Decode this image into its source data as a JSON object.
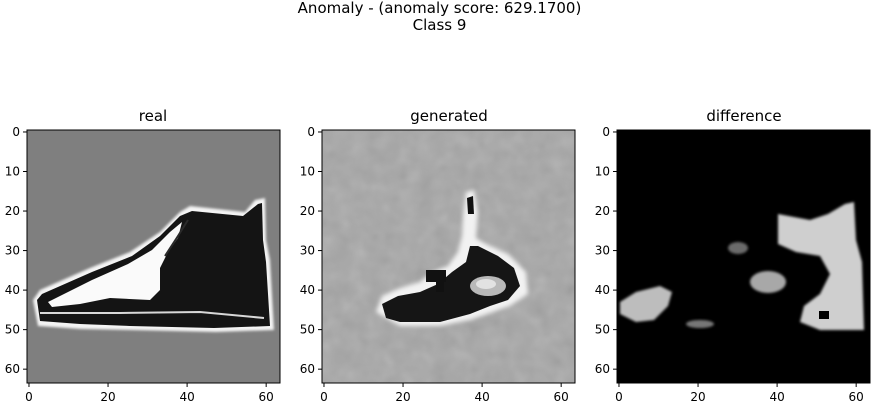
{
  "title": {
    "line1": "Anomaly - (anomaly score: 629.1700)",
    "line2": "Class 9"
  },
  "chart_data": [
    {
      "type": "heatmap",
      "title": "real",
      "colormap": "grayscale",
      "xlim": [
        0,
        63
      ],
      "ylim": [
        63,
        0
      ],
      "xticks": [
        0,
        20,
        40,
        60
      ],
      "yticks": [
        0,
        10,
        20,
        30,
        40,
        50,
        60
      ],
      "background": "#7f7f7f",
      "content": "sneaker silhouette, mostly dark fill with white toe area and white outline"
    },
    {
      "type": "heatmap",
      "title": "generated",
      "colormap": "grayscale",
      "xlim": [
        0,
        63
      ],
      "ylim": [
        63,
        0
      ],
      "xticks": [
        0,
        20,
        40,
        60
      ],
      "yticks": [
        0,
        10,
        20,
        30,
        40,
        50,
        60
      ],
      "background": "#a4a4a4",
      "content": "blurry reconstruction: dark sole and loop shape with white halo, noisy gray background"
    },
    {
      "type": "heatmap",
      "title": "difference",
      "colormap": "grayscale",
      "xlim": [
        0,
        63
      ],
      "ylim": [
        63,
        0
      ],
      "xticks": [
        0,
        20,
        40,
        60
      ],
      "yticks": [
        0,
        10,
        20,
        30,
        40,
        50,
        60
      ],
      "background": "#000000",
      "content": "black background with light-gray blobs at heel/ankle and toe"
    }
  ]
}
